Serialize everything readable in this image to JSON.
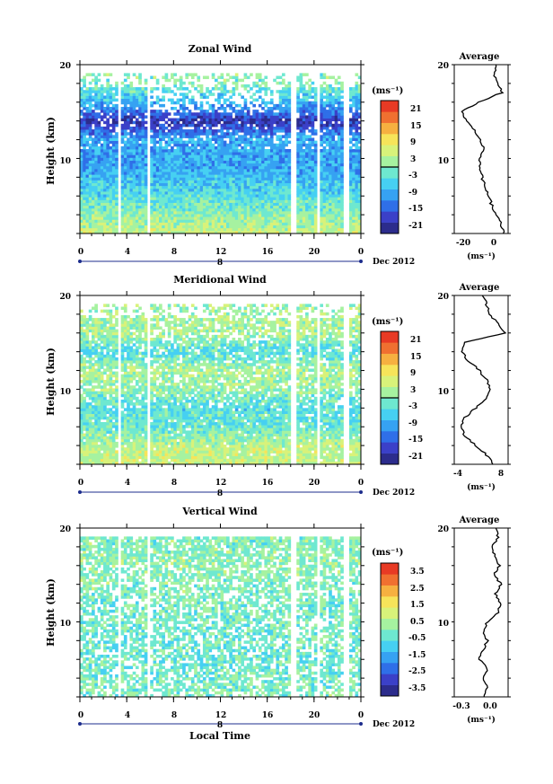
{
  "chart_data": [
    {
      "type": "heatmap",
      "title": "Zonal Wind",
      "ylabel": "Height (km)",
      "yticks": [
        "20",
        "10"
      ],
      "xticks": [
        "0",
        "4",
        "8",
        "12",
        "16",
        "20",
        "0"
      ],
      "date_tick": "8",
      "date_label": "Dec 2012",
      "ylim": [
        2,
        20
      ],
      "xlim": [
        0,
        24
      ],
      "colorbar": {
        "unit": "(ms⁻¹)",
        "ticks": [
          "21",
          "15",
          "9",
          "3",
          "-3",
          "-9",
          "-15",
          "-21"
        ],
        "range": [
          -24,
          24
        ],
        "zero_contour": true
      },
      "profile": {
        "title": "Average",
        "xticks": [
          "-20",
          "0"
        ],
        "xrange": [
          -25,
          8
        ],
        "xlabel": "(ms⁻¹)",
        "yticks": [
          "20",
          "10"
        ],
        "heights": [
          2,
          3,
          4,
          5,
          6,
          7,
          8,
          9,
          10,
          11,
          12,
          13,
          14,
          15,
          16,
          17,
          18,
          19,
          20
        ],
        "values": [
          5,
          4,
          1,
          -2,
          -4,
          -6,
          -8,
          -9,
          -10,
          -7,
          -9,
          -13,
          -18,
          -20,
          -10,
          4,
          2,
          -1,
          1
        ]
      },
      "data_gaps_hours": [
        [
          3.2,
          3.5
        ],
        [
          5.7,
          6.0
        ],
        [
          18.0,
          18.6
        ],
        [
          20.2,
          20.5
        ],
        [
          22.6,
          22.9
        ]
      ],
      "approx_field": {
        "heights_km": [
          2,
          4,
          6,
          8,
          10,
          12,
          14,
          16,
          18
        ],
        "mean_wind": [
          5,
          1,
          -4,
          -8,
          -10,
          -9,
          -20,
          -8,
          0
        ]
      }
    },
    {
      "type": "heatmap",
      "title": "Meridional Wind",
      "ylabel": "Height (km)",
      "yticks": [
        "20",
        "10"
      ],
      "xticks": [
        "0",
        "4",
        "8",
        "12",
        "16",
        "20",
        "0"
      ],
      "date_tick": "8",
      "date_label": "Dec 2012",
      "ylim": [
        2,
        20
      ],
      "xlim": [
        0,
        24
      ],
      "colorbar": {
        "unit": "(ms⁻¹)",
        "ticks": [
          "21",
          "15",
          "9",
          "3",
          "-3",
          "-9",
          "-15",
          "-21"
        ],
        "range": [
          -24,
          24
        ],
        "zero_contour": true
      },
      "profile": {
        "title": "Average",
        "xticks": [
          "-4",
          "8"
        ],
        "xrange": [
          -6,
          9
        ],
        "xlabel": "(ms⁻¹)",
        "yticks": [
          "20",
          "10"
        ],
        "heights": [
          2,
          3,
          4,
          5,
          6,
          7,
          8,
          9,
          10,
          11,
          12,
          13,
          14,
          15,
          16,
          17,
          18,
          19,
          20
        ],
        "values": [
          5,
          3,
          0,
          -3,
          -4,
          -3,
          0,
          3,
          4,
          3,
          1,
          -2,
          -4,
          -3,
          8,
          6,
          4,
          3,
          2
        ]
      },
      "data_gaps_hours": [
        [
          3.2,
          3.5
        ],
        [
          5.7,
          6.0
        ],
        [
          18.0,
          18.6
        ],
        [
          20.2,
          20.5
        ],
        [
          22.6,
          22.9
        ]
      ],
      "approx_field": {
        "heights_km": [
          2,
          4,
          6,
          8,
          10,
          12,
          14,
          16,
          18
        ],
        "mean_wind": [
          5,
          4,
          -2,
          -4,
          1,
          3,
          -4,
          3,
          2
        ]
      }
    },
    {
      "type": "heatmap",
      "title": "Vertical Wind",
      "ylabel": "Height (km)",
      "xlabel": "Local Time",
      "yticks": [
        "20",
        "10"
      ],
      "xticks": [
        "0",
        "4",
        "8",
        "12",
        "16",
        "20",
        "0"
      ],
      "date_tick": "8",
      "date_label": "Dec 2012",
      "ylim": [
        2,
        20
      ],
      "xlim": [
        0,
        24
      ],
      "colorbar": {
        "unit": "(ms⁻¹)",
        "ticks": [
          "3.5",
          "2.5",
          "1.5",
          "0.5",
          "-0.5",
          "-1.5",
          "-2.5",
          "-3.5"
        ],
        "range": [
          -4,
          4
        ],
        "zero_contour": false
      },
      "profile": {
        "title": "Average",
        "xticks": [
          "-0.3",
          "0.0"
        ],
        "xrange": [
          -0.45,
          0.2
        ],
        "xlabel": "(ms⁻¹)",
        "yticks": [
          "20",
          "10"
        ],
        "heights": [
          2,
          3,
          4,
          5,
          6,
          7,
          8,
          9,
          10,
          11,
          12,
          13,
          14,
          15,
          16,
          17,
          18,
          19,
          20
        ],
        "values": [
          -0.1,
          -0.05,
          -0.1,
          -0.05,
          -0.15,
          -0.1,
          -0.05,
          -0.1,
          -0.05,
          0.08,
          0.1,
          0.05,
          0.12,
          0.02,
          0.1,
          0.05,
          0.0,
          0.08,
          0.05
        ]
      },
      "data_gaps_hours": [
        [
          3.2,
          3.5
        ],
        [
          5.7,
          6.0
        ],
        [
          18.0,
          18.6
        ],
        [
          20.2,
          20.5
        ],
        [
          22.6,
          22.9
        ]
      ],
      "approx_field": {
        "heights_km": [
          2,
          4,
          6,
          8,
          10,
          12,
          14,
          16,
          18
        ],
        "mean_wind": [
          0,
          -0.2,
          -0.3,
          -0.3,
          -0.2,
          -0.1,
          0,
          0.1,
          0
        ]
      }
    }
  ],
  "colors": {
    "colormap": [
      "#2c2c8c",
      "#3b40c8",
      "#2f6fe8",
      "#36a2f2",
      "#46d0f2",
      "#6ee8d0",
      "#a6f2a0",
      "#d8f27a",
      "#f6e45a",
      "#f6b040",
      "#f07030",
      "#e83a24"
    ],
    "axis": "#000000",
    "timebar": "#1c2c8c"
  }
}
